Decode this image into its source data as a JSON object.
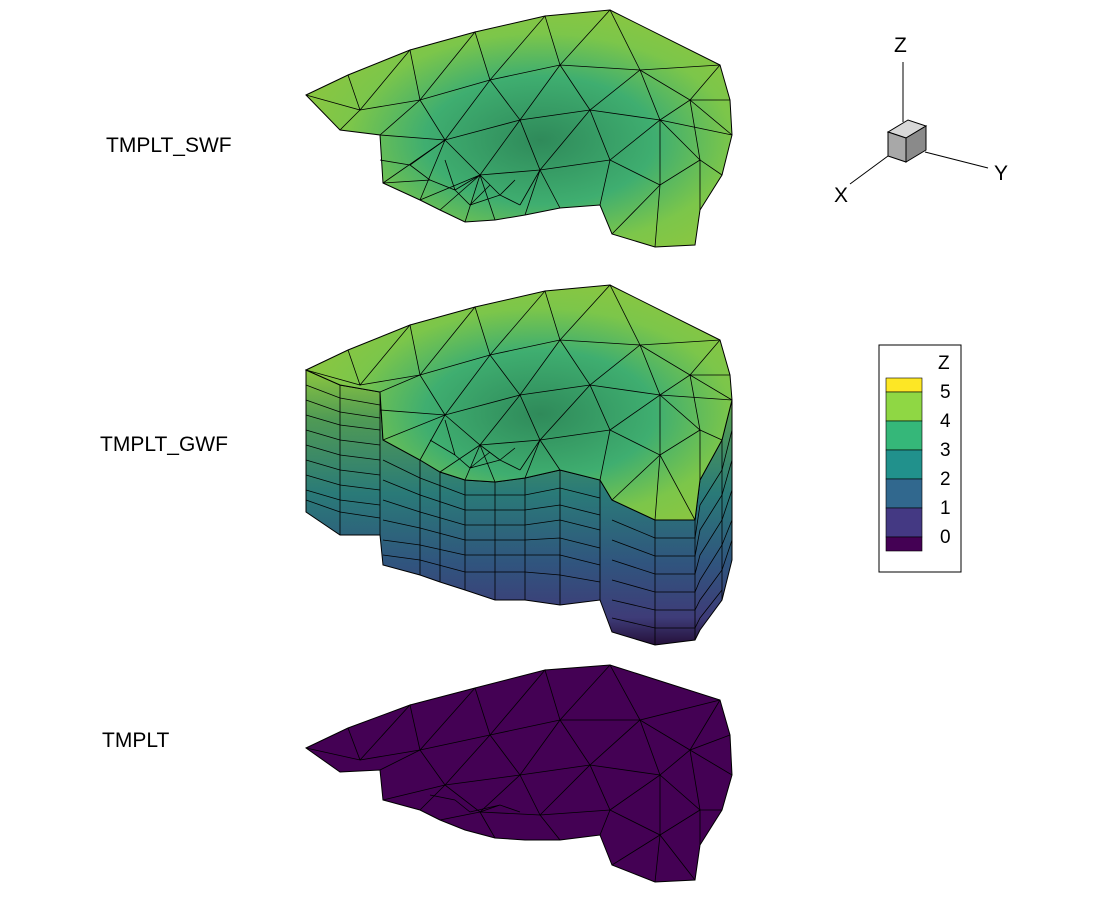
{
  "meshes": [
    {
      "label": "TMPLT_SWF"
    },
    {
      "label": "TMPLT_GWF"
    },
    {
      "label": "TMPLT"
    }
  ],
  "axes_triad": {
    "z": "Z",
    "x": "X",
    "y": "Y",
    "cube_color": "#b0b0b0"
  },
  "legend": {
    "title": "Z",
    "levels": [
      {
        "value": "5",
        "color": "#fde725"
      },
      {
        "value": "4",
        "color": "#8fd744"
      },
      {
        "value": "3",
        "color": "#35b779"
      },
      {
        "value": "2",
        "color": "#21918c"
      },
      {
        "value": "1",
        "color": "#31688e"
      },
      {
        "value": "0",
        "color": "#443983"
      },
      {
        "value": "",
        "color": "#440154"
      }
    ]
  },
  "colors": {
    "top_light": "#8cc63f",
    "top_mid": "#4fb36b",
    "top_dark": "#2f8a5a",
    "base": "#440154"
  }
}
